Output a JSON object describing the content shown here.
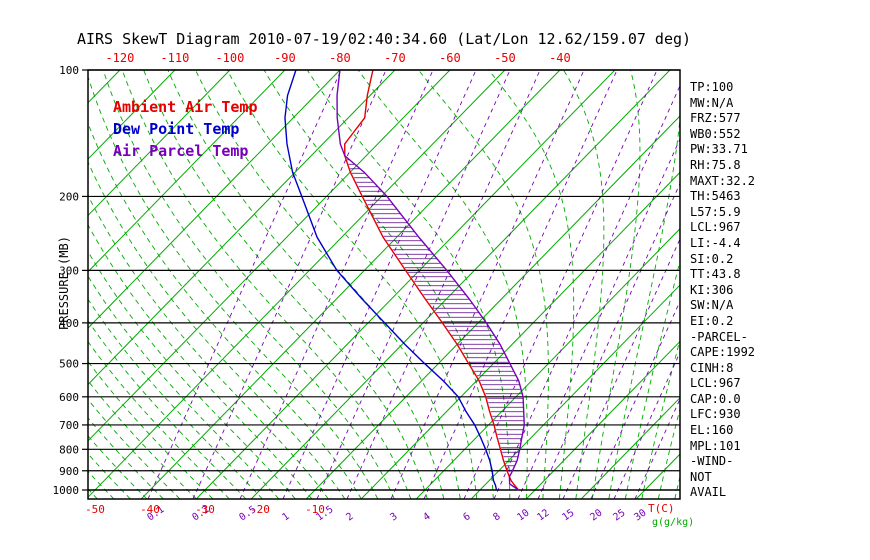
{
  "title": "AIRS SkewT Diagram 2010-07-19/02:40:34.60 (Lat/Lon 12.62/159.07 deg)",
  "colors": {
    "ambient": "#e60000",
    "dewpoint": "#0000cc",
    "parcel": "#7700bb",
    "isotherm_green": "#00aa00",
    "moist_adiabat_green": "#00aa00",
    "mixing_purple": "#7700bb",
    "hatch_purple": "#550088",
    "grid_black": "#000000",
    "top_tick_red": "#e60000",
    "bottom_tick_red": "#e60000",
    "mixing_label_purple": "#7700bb",
    "gkg_green": "#00aa00"
  },
  "legend": {
    "items": [
      {
        "label": "Ambient Air Temp",
        "color": "#e60000"
      },
      {
        "label": "Dew Point Temp",
        "color": "#0000cc"
      },
      {
        "label": "Air Parcel Temp",
        "color": "#7700bb"
      }
    ]
  },
  "stats_panel": {
    "lines": [
      "TP:100",
      "MW:N/A",
      "FRZ:577",
      "WB0:552",
      "PW:33.71",
      "RH:75.8",
      "MAXT:32.2",
      "TH:5463",
      "L57:5.9",
      "LCL:967",
      "LI:-4.4",
      "SI:0.2",
      "TT:43.8",
      "KI:306",
      "SW:N/A",
      "EI:0.2",
      "-PARCEL-",
      "CAPE:1992",
      "CINH:8",
      "LCL:967",
      "CAP:0.0",
      "LFC:930",
      "EL:160",
      "MPL:101",
      "-WIND-",
      "NOT",
      "AVAIL"
    ]
  },
  "axes": {
    "pressure_label": "PRESSURE (MB)",
    "pressure_ticks": [
      100,
      200,
      300,
      400,
      500,
      600,
      700,
      800,
      900,
      1000
    ],
    "top_temp_ticks": [
      -120,
      -110,
      -100,
      -90,
      -80,
      -70,
      -60,
      -50,
      -40
    ],
    "bottom_temp_ticks": [
      -50,
      -40,
      -30,
      -20,
      -10
    ],
    "temp_unit_label": "T(C)",
    "mixing_unit_label": "g(g/kg)"
  },
  "chart_data": {
    "type": "line",
    "variant": "skew-t-log-p",
    "title": "AIRS SkewT Diagram 2010-07-19/02:40:34.60 (Lat/Lon 12.62/159.07 deg)",
    "xlabel": "Temperature (C)",
    "ylabel": "PRESSURE (MB)",
    "pressure_range_mb": [
      100,
      1050
    ],
    "pressure_gridlines_mb": [
      100,
      200,
      300,
      400,
      500,
      600,
      700,
      800,
      900,
      1000
    ],
    "isotherms_c": {
      "min": -150,
      "max": 70,
      "step": 10
    },
    "moist_adiabats_start_c": {
      "min": -108,
      "max": 57,
      "step": 3
    },
    "mixing_ratio_lines": [
      {
        "value": 0.1,
        "x": 148
      },
      {
        "value": 0.2,
        "x": 193
      },
      {
        "value": 0.5,
        "x": 240
      },
      {
        "value": 1,
        "x": 283
      },
      {
        "value": 1.5,
        "x": 317
      },
      {
        "value": 2,
        "x": 347
      },
      {
        "value": 3,
        "x": 391
      },
      {
        "value": 4,
        "x": 424
      },
      {
        "value": 6,
        "x": 464
      },
      {
        "value": 8,
        "x": 494
      },
      {
        "value": 10,
        "x": 518
      },
      {
        "value": 12,
        "x": 538
      },
      {
        "value": 15,
        "x": 563
      },
      {
        "value": 20,
        "x": 591
      },
      {
        "value": 25,
        "x": 614
      },
      {
        "value": 30,
        "x": 635
      }
    ],
    "series": [
      {
        "name": "Ambient Air Temp",
        "color": "#e60000",
        "points": [
          [
            1000,
            27
          ],
          [
            975,
            25.5
          ],
          [
            950,
            24
          ],
          [
            930,
            23
          ],
          [
            900,
            21.5
          ],
          [
            850,
            19
          ],
          [
            800,
            16.5
          ],
          [
            750,
            13.8
          ],
          [
            700,
            11
          ],
          [
            650,
            7.8
          ],
          [
            600,
            4.5
          ],
          [
            550,
            0.5
          ],
          [
            500,
            -4.5
          ],
          [
            450,
            -10
          ],
          [
            400,
            -16.5
          ],
          [
            350,
            -24
          ],
          [
            300,
            -32.5
          ],
          [
            250,
            -42.5
          ],
          [
            200,
            -53.5
          ],
          [
            175,
            -60
          ],
          [
            160,
            -63.9
          ],
          [
            150,
            -66
          ],
          [
            140,
            -66.5
          ],
          [
            130,
            -67
          ],
          [
            115,
            -70.5
          ],
          [
            100,
            -74
          ]
        ]
      },
      {
        "name": "Dew Point Temp",
        "color": "#0000cc",
        "points": [
          [
            1000,
            23
          ],
          [
            975,
            22
          ],
          [
            950,
            20.8
          ],
          [
            930,
            20
          ],
          [
            900,
            18.8
          ],
          [
            850,
            16.5
          ],
          [
            800,
            13.8
          ],
          [
            750,
            10.8
          ],
          [
            700,
            7.5
          ],
          [
            650,
            3.5
          ],
          [
            600,
            -0.5
          ],
          [
            550,
            -6
          ],
          [
            500,
            -12.5
          ],
          [
            450,
            -19.5
          ],
          [
            400,
            -27
          ],
          [
            350,
            -35.5
          ],
          [
            300,
            -45
          ],
          [
            250,
            -54.5
          ],
          [
            200,
            -64.5
          ],
          [
            175,
            -70.5
          ],
          [
            150,
            -76.5
          ],
          [
            130,
            -81.5
          ],
          [
            115,
            -85
          ],
          [
            100,
            -88
          ]
        ]
      },
      {
        "name": "Air Parcel Temp",
        "color": "#7700bb",
        "points": [
          [
            1000,
            27
          ],
          [
            967,
            24.3
          ],
          [
            930,
            23
          ],
          [
            900,
            22.5
          ],
          [
            850,
            21.5
          ],
          [
            800,
            20
          ],
          [
            750,
            18.3
          ],
          [
            700,
            16.5
          ],
          [
            650,
            14
          ],
          [
            600,
            11.3
          ],
          [
            550,
            7.7
          ],
          [
            500,
            3
          ],
          [
            450,
            -2.2
          ],
          [
            400,
            -8.5
          ],
          [
            350,
            -16
          ],
          [
            300,
            -25
          ],
          [
            250,
            -36
          ],
          [
            200,
            -49
          ],
          [
            175,
            -57.5
          ],
          [
            160,
            -63.9
          ],
          [
            150,
            -66.8
          ],
          [
            130,
            -72
          ],
          [
            115,
            -76
          ],
          [
            100,
            -80
          ]
        ]
      }
    ],
    "cape_hatch": {
      "from_mb": 930,
      "to_mb": 160
    },
    "key_levels": {
      "LCL_mb": 967,
      "LFC_mb": 930,
      "EL_mb": 160,
      "CAPE_J_kg": 1992,
      "CINH_J_kg": 8
    }
  }
}
